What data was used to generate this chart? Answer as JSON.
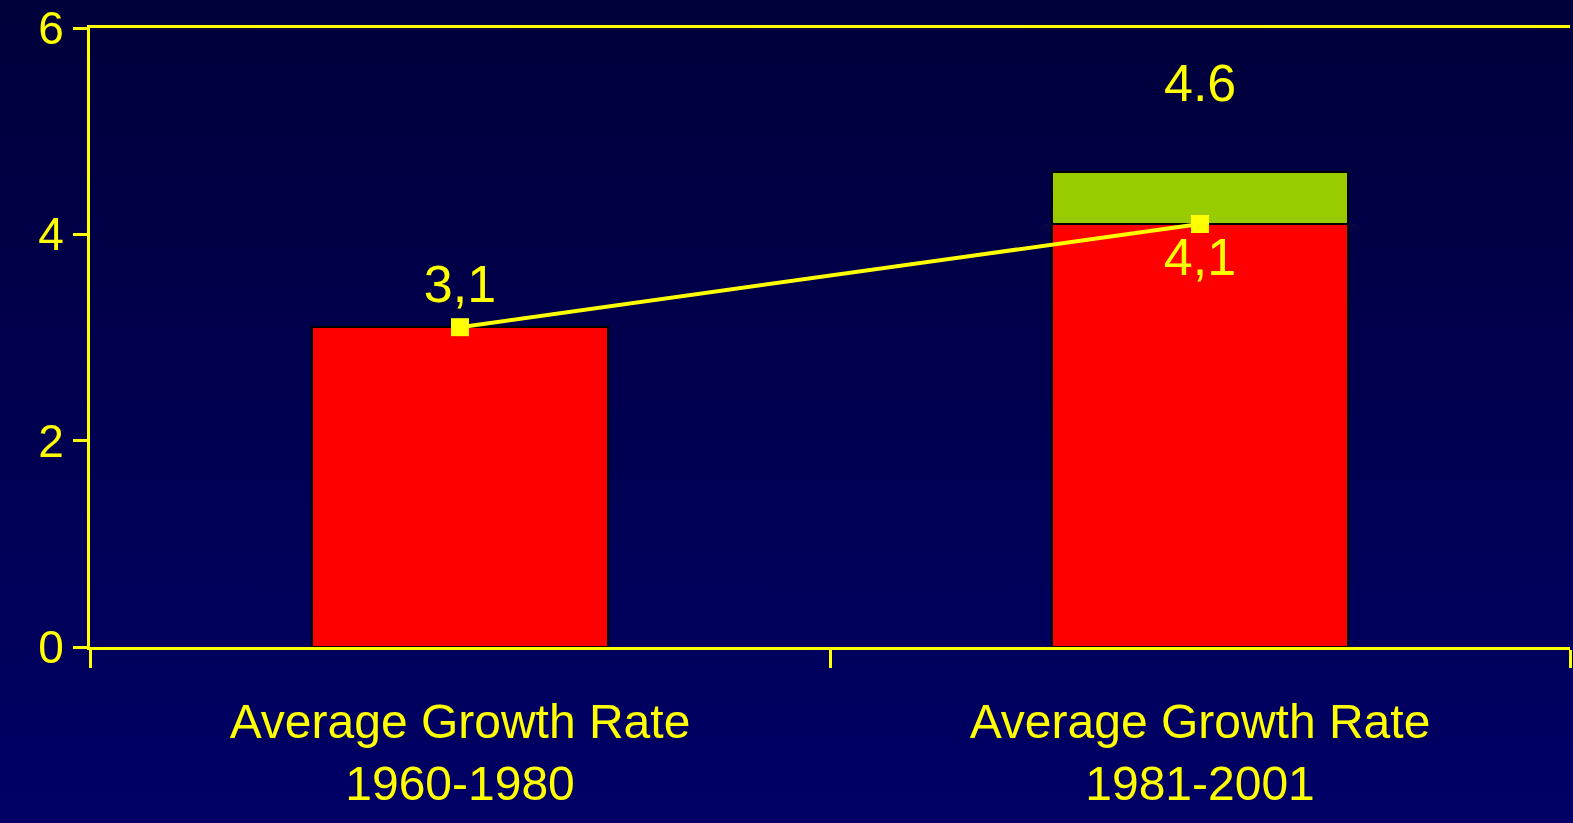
{
  "chart_data": {
    "type": "bar",
    "stacked": true,
    "categories": [
      "Average Growth Rate\n1960-1980",
      "Average Growth Rate\n1981-2001"
    ],
    "series": [
      {
        "color": "#ff0000",
        "values": [
          3.1,
          4.1
        ]
      },
      {
        "color": "#99cc00",
        "values": [
          null,
          0.5
        ]
      },
      {
        "type": "line",
        "color": "#ffff00",
        "values": [
          3.1,
          4.1
        ],
        "marker": "square",
        "line_style": "solid",
        "value_labels": [
          "3,1",
          "4,1"
        ]
      }
    ],
    "totals": [
      null,
      "4.6"
    ],
    "ylim": [
      0,
      6
    ],
    "yticks": [
      0,
      2,
      4,
      6
    ],
    "grid": false
  }
}
